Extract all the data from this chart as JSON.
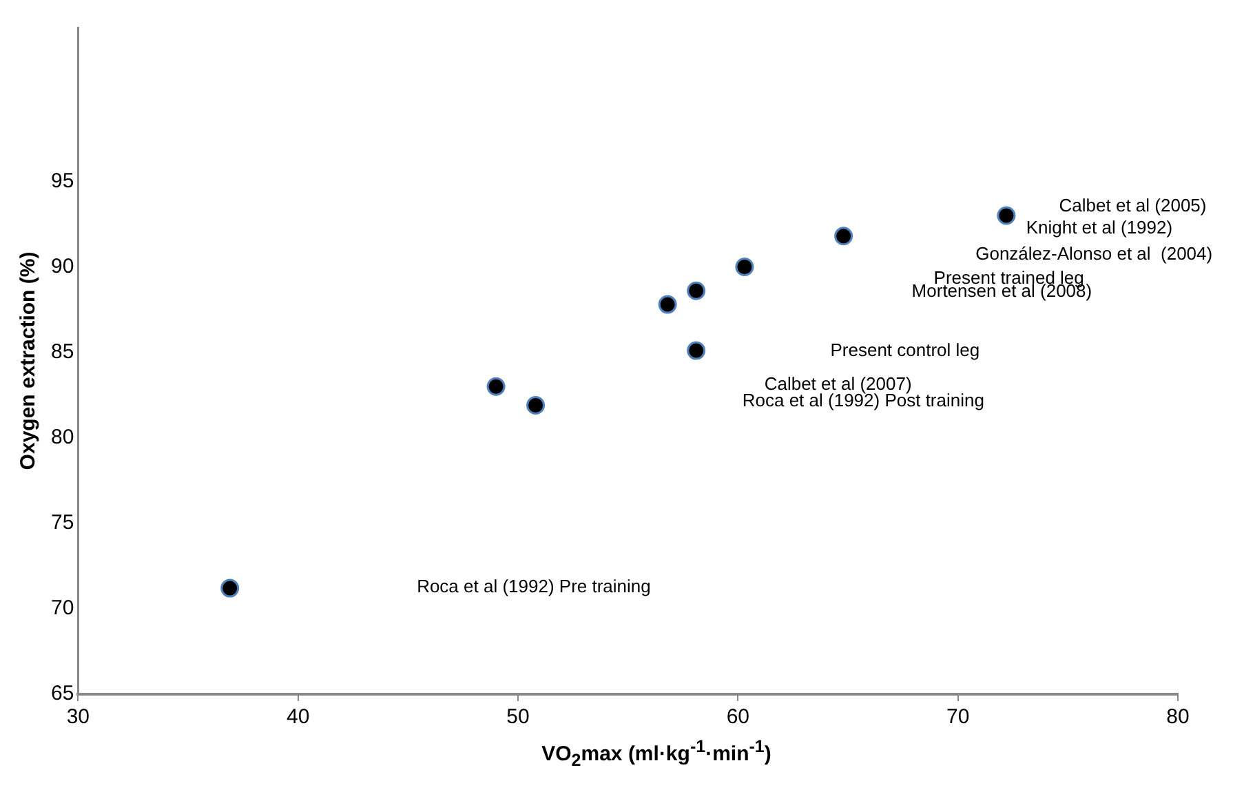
{
  "chart_data": {
    "type": "scatter",
    "xlabel": "VO$_{2}$max (ml·kg$^{-1}$·min$^{-1}$)",
    "ylabel": "Oxygen extraction (%)",
    "x": [
      36.9,
      49.0,
      50.8,
      56.8,
      58.1,
      58.1,
      60.3,
      64.8,
      72.2
    ],
    "series": [
      {
        "color": "#000000",
        "values": [
          71.2,
          83.0,
          81.9,
          87.8,
          88.6,
          85.1,
          90.0,
          91.8,
          93.0
        ]
      }
    ],
    "xlim": [
      30,
      80
    ],
    "xticks": [
      30,
      40,
      50,
      60,
      70,
      80
    ],
    "ylim": [
      65,
      104
    ],
    "yticks": [
      65,
      70,
      75,
      80,
      85,
      90,
      95
    ],
    "grid": false,
    "legend": false,
    "marker": "circle",
    "annotations": [
      "Calbet et al (2005)",
      "Knight et al (1992)",
      "González-Alonso et al  (2004)",
      "Present trained leg",
      "Mortensen et al (2008)",
      "Present control leg",
      "Calbet et al (2007)",
      "Roca et al (1992) Post training",
      "Roca et al (1992) Pre training"
    ]
  }
}
